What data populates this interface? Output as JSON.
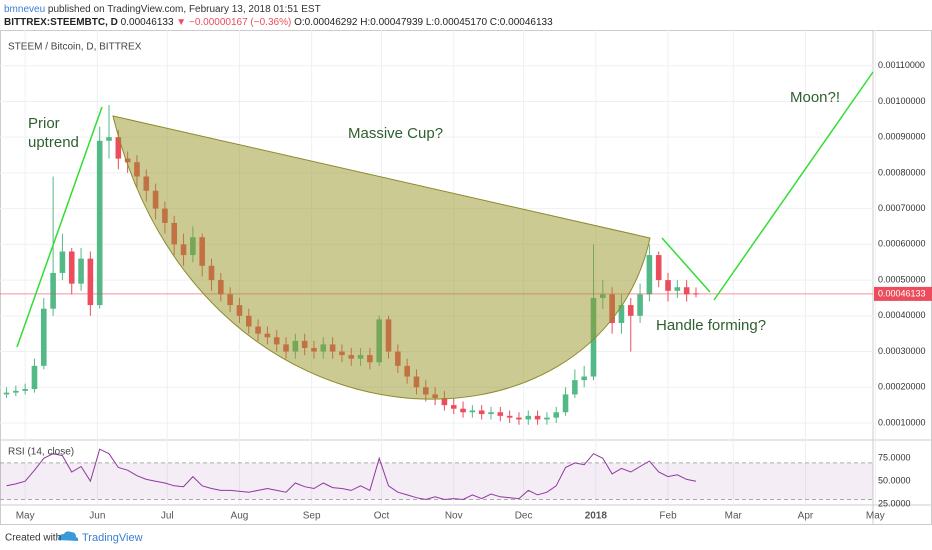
{
  "header": {
    "author": "bmneveu",
    "published": "published on TradingView.com, February 13, 2018 01:51 EST",
    "symbol": "BITTREX:STEEMBTC, D",
    "price": "0.00046133",
    "arrow": "▼",
    "change": "−0.00000167 (−0.36%)",
    "ohlc": "O:0.00046292 H:0.00047939 L:0.00045170 C:0.00046133"
  },
  "footer": {
    "created": "Created with",
    "brand": "TradingView"
  },
  "chart_data": {
    "type": "candlestick",
    "title": "STEEM / Bitcoin, D, BITTREX",
    "up_color": "#53b987",
    "down_color": "#eb4d5c",
    "open": [
      0.00018,
      0.000185,
      0.00019,
      0.000195,
      0.00026,
      0.00042,
      0.00052,
      0.00058,
      0.00049,
      0.00056,
      0.00043,
      0.00089,
      0.0009,
      0.00084,
      0.00083,
      0.00079,
      0.00075,
      0.0007,
      0.00066,
      0.0006,
      0.00057,
      0.00062,
      0.00054,
      0.0005,
      0.00046,
      0.00043,
      0.0004,
      0.00037,
      0.00035,
      0.00034,
      0.00032,
      0.0003,
      0.00033,
      0.00031,
      0.0003,
      0.00032,
      0.0003,
      0.00029,
      0.00028,
      0.00029,
      0.00027,
      0.00039,
      0.0003,
      0.00026,
      0.00023,
      0.0002,
      0.00018,
      0.00017,
      0.00015,
      0.00014,
      0.00013,
      0.000135,
      0.000125,
      0.00013,
      0.00012,
      0.000115,
      0.00011,
      0.00012,
      0.00011,
      0.000115,
      0.00013,
      0.00018,
      0.00022,
      0.00023,
      0.00045,
      0.00046,
      0.00038,
      0.00043,
      0.0004,
      0.00046,
      0.00057,
      0.0005,
      0.00047,
      0.00048,
      0.00046292
    ],
    "high": [
      0.0002,
      0.000205,
      0.00021,
      0.00028,
      0.00045,
      0.00079,
      0.00063,
      0.00059,
      0.00059,
      0.00058,
      0.00093,
      0.00099,
      0.00092,
      0.00086,
      0.00085,
      0.00081,
      0.00077,
      0.00072,
      0.00068,
      0.00063,
      0.00065,
      0.00063,
      0.00056,
      0.00052,
      0.00048,
      0.00045,
      0.00042,
      0.00039,
      0.00037,
      0.00036,
      0.00034,
      0.00035,
      0.00035,
      0.00033,
      0.00034,
      0.00034,
      0.00032,
      0.00031,
      0.00031,
      0.00031,
      0.0004,
      0.0004,
      0.00032,
      0.00028,
      0.00025,
      0.00022,
      0.0002,
      0.00019,
      0.00017,
      0.00016,
      0.00015,
      0.00015,
      0.000145,
      0.000145,
      0.000135,
      0.00013,
      0.000135,
      0.000135,
      0.00013,
      0.000145,
      0.0002,
      0.00025,
      0.00026,
      0.0006,
      0.0005,
      0.00048,
      0.00046,
      0.00045,
      0.00049,
      0.0006,
      0.00058,
      0.00052,
      0.0005,
      0.0005,
      0.00047939
    ],
    "low": [
      0.00017,
      0.000175,
      0.00018,
      0.000185,
      0.00025,
      0.0004,
      0.0005,
      0.00046,
      0.00047,
      0.0004,
      0.00042,
      0.00084,
      0.00081,
      0.0008,
      0.00076,
      0.00072,
      0.00067,
      0.00063,
      0.00057,
      0.00054,
      0.00055,
      0.00051,
      0.00047,
      0.00044,
      0.00041,
      0.00038,
      0.00035,
      0.00033,
      0.00032,
      0.0003,
      0.00028,
      0.00028,
      0.00029,
      0.00028,
      0.00028,
      0.00028,
      0.00027,
      0.00026,
      0.00026,
      0.00025,
      0.00026,
      0.00028,
      0.00024,
      0.00021,
      0.00018,
      0.00016,
      0.00015,
      0.000135,
      0.000125,
      0.000115,
      0.000115,
      0.00011,
      0.00011,
      0.000105,
      0.0001,
      9.5e-05,
      9.5e-05,
      9.5e-05,
      9.5e-05,
      0.0001,
      0.00012,
      0.00017,
      0.0002,
      0.00022,
      0.00042,
      0.00035,
      0.00035,
      0.0003,
      0.00038,
      0.00044,
      0.00048,
      0.00044,
      0.00045,
      0.00044,
      0.0004517
    ],
    "close": [
      0.000185,
      0.00019,
      0.000195,
      0.00026,
      0.00042,
      0.00052,
      0.00058,
      0.00049,
      0.00056,
      0.00043,
      0.00089,
      0.0009,
      0.00084,
      0.00083,
      0.00079,
      0.00075,
      0.0007,
      0.00066,
      0.0006,
      0.00057,
      0.00062,
      0.00054,
      0.0005,
      0.00046,
      0.00043,
      0.0004,
      0.00037,
      0.00035,
      0.00034,
      0.00032,
      0.0003,
      0.00033,
      0.00031,
      0.0003,
      0.00032,
      0.0003,
      0.00029,
      0.00028,
      0.00029,
      0.00027,
      0.00039,
      0.0003,
      0.00026,
      0.00023,
      0.0002,
      0.00018,
      0.00017,
      0.00015,
      0.00014,
      0.00013,
      0.000135,
      0.000125,
      0.00013,
      0.00012,
      0.000115,
      0.00011,
      0.00012,
      0.00011,
      0.000115,
      0.00013,
      0.00018,
      0.00022,
      0.00023,
      0.00045,
      0.00046,
      0.00038,
      0.00043,
      0.0004,
      0.00046,
      0.00057,
      0.0005,
      0.00047,
      0.00048,
      0.00046,
      0.00046133
    ],
    "last_price": {
      "value": 0.00046133,
      "label": "0.00046133"
    },
    "last_color": "#eb4d5c",
    "xlim": [
      -0.7,
      93
    ],
    "xticks": [
      {
        "value": 2,
        "label": "May"
      },
      {
        "value": 9.75,
        "label": "Jun"
      },
      {
        "value": 17.25,
        "label": "Jul"
      },
      {
        "value": 25,
        "label": "Aug"
      },
      {
        "value": 32.75,
        "label": "Sep"
      },
      {
        "value": 40.25,
        "label": "Oct"
      },
      {
        "value": 48,
        "label": "Nov"
      },
      {
        "value": 55.5,
        "label": "Dec"
      },
      {
        "value": 63.25,
        "label": "2018"
      },
      {
        "value": 71,
        "label": "Feb"
      },
      {
        "value": 78,
        "label": "Mar"
      },
      {
        "value": 85.75,
        "label": "Apr"
      },
      {
        "value": 93.25,
        "label": "May"
      }
    ],
    "ylim": [
      5.24e-05,
      0.0012
    ],
    "yticks": [
      {
        "value": 0.0001,
        "label": "0.00010000"
      },
      {
        "value": 0.0002,
        "label": "0.00020000"
      },
      {
        "value": 0.0003,
        "label": "0.00030000"
      },
      {
        "value": 0.0004,
        "label": "0.00040000"
      },
      {
        "value": 0.0005,
        "label": "0.00050000"
      },
      {
        "value": 0.0006,
        "label": "0.00060000"
      },
      {
        "value": 0.0007,
        "label": "0.00070000"
      },
      {
        "value": 0.0008,
        "label": "0.00080000"
      },
      {
        "value": 0.0009,
        "label": "0.00090000"
      },
      {
        "value": 0.001,
        "label": "0.00100000"
      },
      {
        "value": 0.0011,
        "label": "0.00110000"
      }
    ],
    "grid": true,
    "annotations": [
      "Prior",
      "uptrend",
      "Massive Cup?",
      "Handle forming?",
      "Moon?!"
    ],
    "rsi": {
      "title": "RSI (14, close)",
      "color": "#8e3a9e",
      "bands": [
        30,
        70
      ],
      "ylim": [
        24,
        95
      ],
      "yticks": [
        {
          "value": 25,
          "label": "25.0000"
        },
        {
          "value": 50,
          "label": "50.0000"
        },
        {
          "value": 75,
          "label": "75.0000"
        }
      ],
      "values": [
        45,
        47,
        50,
        62,
        75,
        80,
        78,
        60,
        66,
        50,
        85,
        80,
        65,
        62,
        56,
        52,
        50,
        48,
        45,
        44,
        55,
        45,
        42,
        40,
        40,
        39,
        38,
        40,
        42,
        40,
        38,
        48,
        44,
        42,
        48,
        43,
        42,
        40,
        45,
        40,
        75,
        45,
        38,
        35,
        32,
        30,
        33,
        30,
        31,
        30,
        35,
        31,
        36,
        33,
        32,
        31,
        40,
        35,
        38,
        45,
        65,
        70,
        68,
        80,
        75,
        58,
        64,
        60,
        66,
        72,
        60,
        55,
        57,
        52,
        50
      ]
    }
  }
}
